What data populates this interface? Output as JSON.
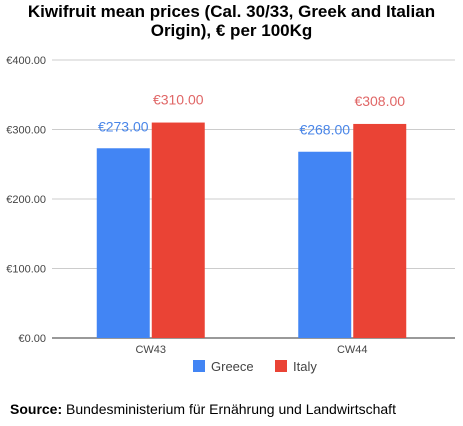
{
  "chart_data": {
    "type": "bar",
    "title_lines": [
      "Kiwifruit mean prices (Cal. 30/33, Greek and Italian",
      "Origin), € per 100Kg"
    ],
    "categories": [
      "CW43",
      "CW44"
    ],
    "series": [
      {
        "name": "Greece",
        "values": [
          273,
          268
        ],
        "labels": [
          "€273.00",
          "€268.00"
        ],
        "color": "#4285f4",
        "label_color": "#4a86e8"
      },
      {
        "name": "Italy",
        "values": [
          310,
          308
        ],
        "labels": [
          "€310.00",
          "€308.00"
        ],
        "color": "#ea4335",
        "label_color": "#e06666"
      }
    ],
    "ylim": [
      0,
      400
    ],
    "yticks": [
      0,
      100,
      200,
      300,
      400
    ],
    "ytick_labels": [
      "€0.00",
      "€100.00",
      "€200.00",
      "€300.00",
      "€400.00"
    ],
    "grid": true,
    "legend_position": "bottom"
  },
  "source": {
    "label": "Source:",
    "text": " Bundesministerium für Ernährung und Landwirtschaft"
  }
}
